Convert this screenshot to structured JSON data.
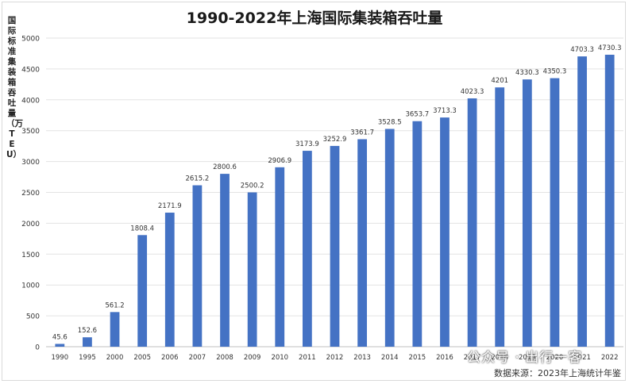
{
  "chart_data": {
    "type": "bar",
    "title": "1990-2022年上海国际集装箱吞吐量",
    "ylabel": "国际标准集装箱吞吐量（万TEU）",
    "xlabel": "",
    "ylim": [
      0,
      5000
    ],
    "yticks": [
      0,
      500,
      1000,
      1500,
      2000,
      2500,
      3000,
      3500,
      4000,
      4500,
      5000
    ],
    "categories": [
      "1990",
      "1995",
      "2000",
      "2005",
      "2006",
      "2007",
      "2008",
      "2009",
      "2010",
      "2011",
      "2012",
      "2013",
      "2014",
      "2015",
      "2016",
      "2017",
      "2018",
      "2019",
      "2020",
      "2021",
      "2022"
    ],
    "values": [
      45.6,
      152.6,
      561.2,
      1808.4,
      2171.9,
      2615.2,
      2800.6,
      2500.2,
      2906.9,
      3173.9,
      3252.9,
      3361.7,
      3528.5,
      3653.7,
      3713.3,
      4023.3,
      4201,
      4330.3,
      4350.3,
      4703.3,
      4730.3
    ],
    "data_labels": [
      "45.6",
      "152.6",
      "561.2",
      "1808.4",
      "2171.9",
      "2615.2",
      "2800.6",
      "2500.2",
      "2906.9",
      "3173.9",
      "3252.9",
      "3361.7",
      "3528.5",
      "3653.7",
      "3713.3",
      "4023.3",
      "4201",
      "4330.3",
      "4350.3",
      "4703.3",
      "4730.3"
    ],
    "grid": true,
    "legend": "none",
    "bar_color": "#4472c4"
  },
  "watermark": "公众号 · 出行一客",
  "source": "数据来源：2023年上海统计年鉴"
}
